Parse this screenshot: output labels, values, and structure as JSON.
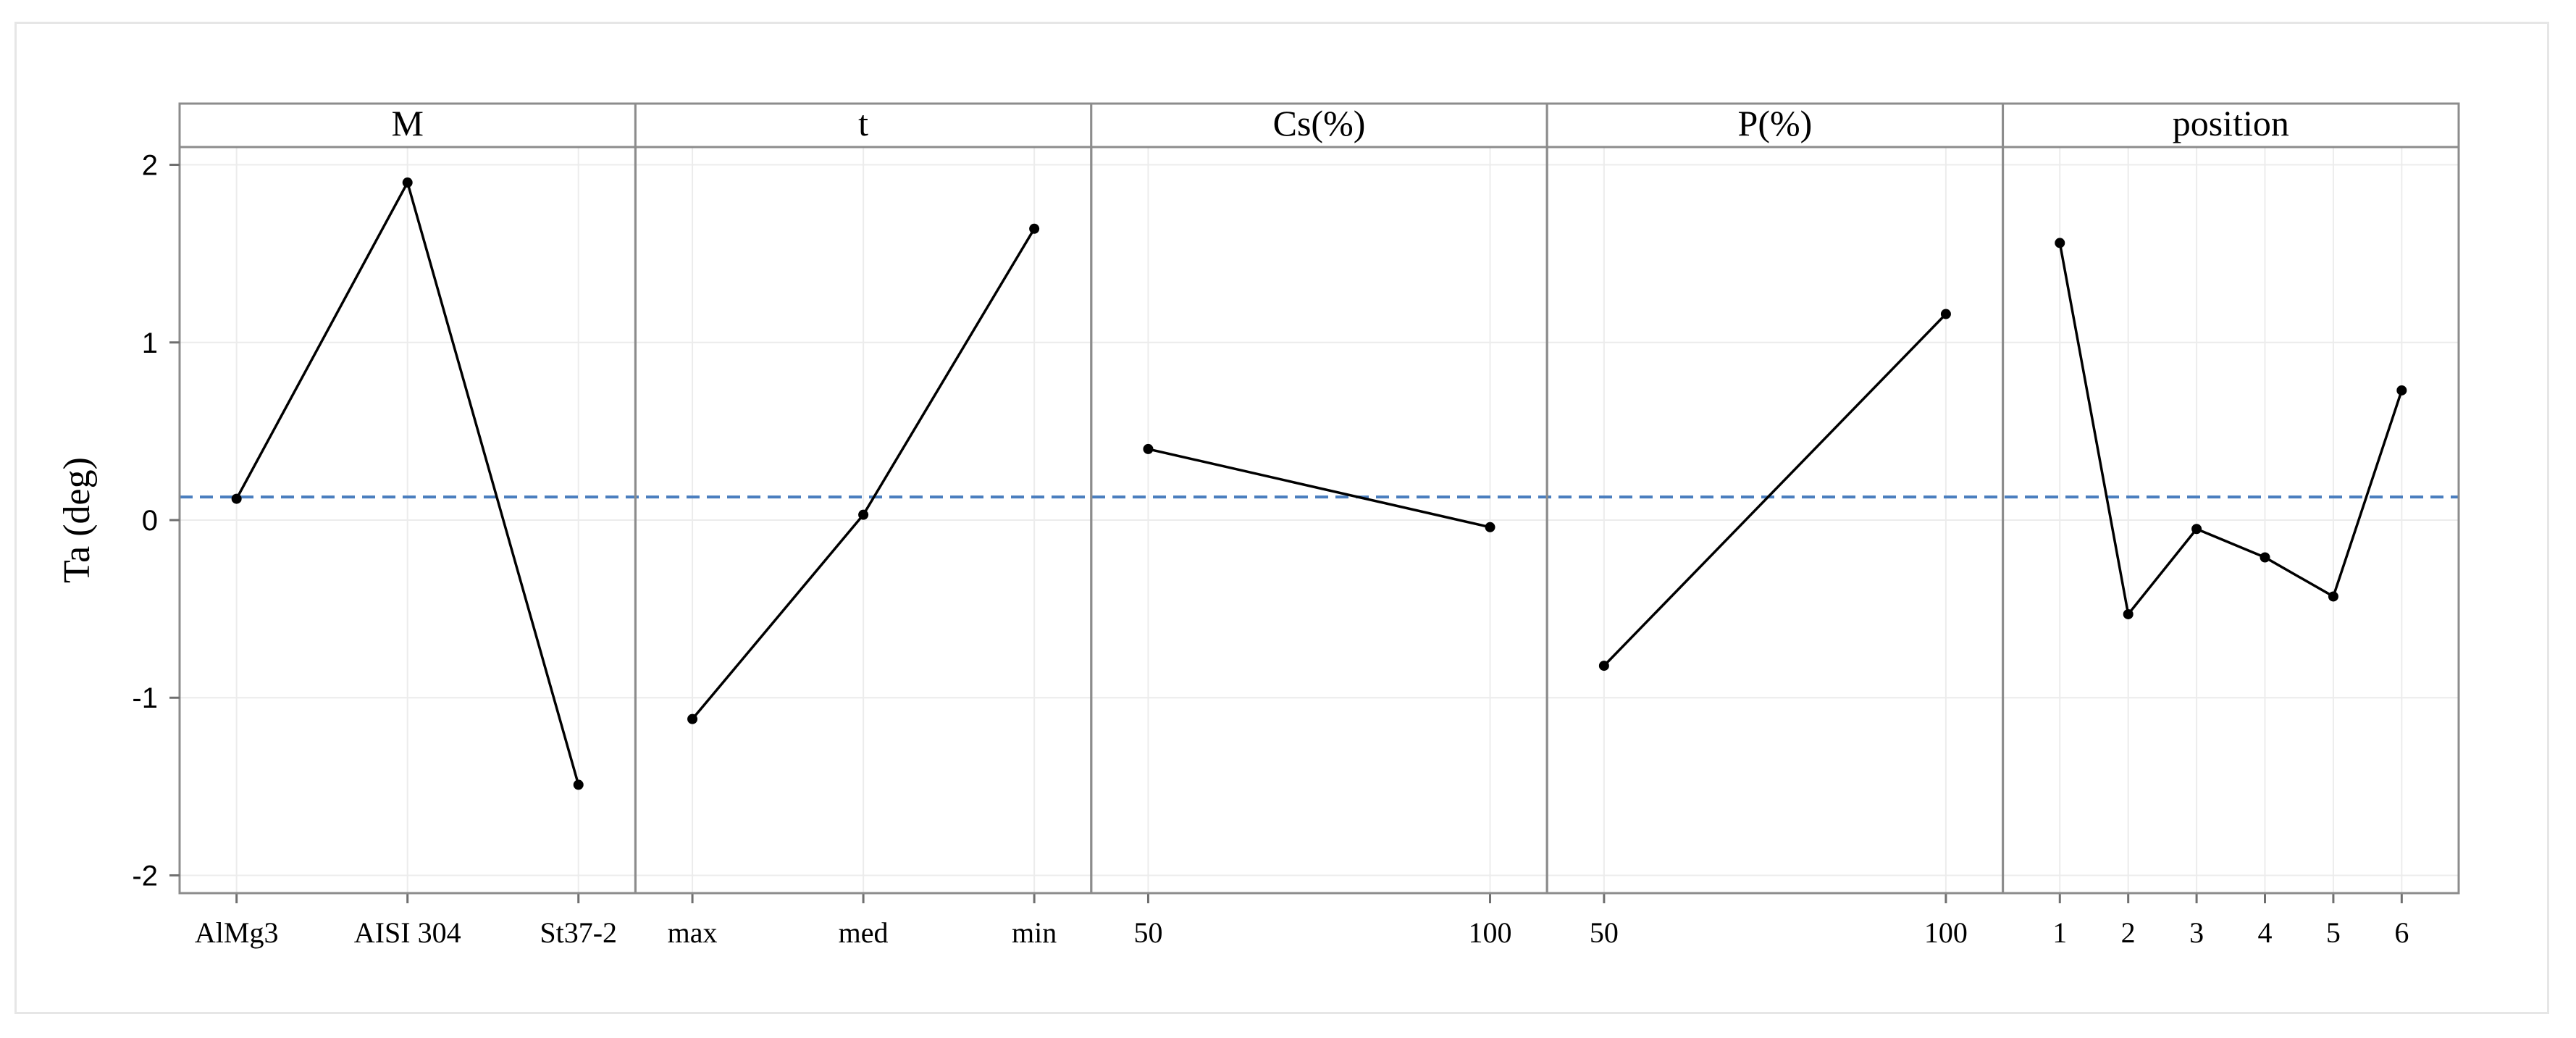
{
  "chart_data": {
    "type": "line",
    "ylabel": "Ta (deg)",
    "ylim": [
      -2.1,
      2.1
    ],
    "yticks": [
      2,
      1,
      0,
      -1,
      -2
    ],
    "ytick_labels": [
      "2",
      "1",
      "0",
      "-1",
      "-2"
    ],
    "reference_line": {
      "y": 0.13,
      "style": "dashed",
      "color": "#4a7ebf"
    },
    "line_color": "#000000",
    "grid": true,
    "panels": [
      {
        "title": "M",
        "categories": [
          "AlMg3",
          "AISI 304",
          "St37-2"
        ],
        "values": [
          0.12,
          1.9,
          -1.49
        ]
      },
      {
        "title": "t",
        "categories": [
          "max",
          "med",
          "min"
        ],
        "values": [
          -1.12,
          0.03,
          1.64
        ]
      },
      {
        "title": "Cs(%)",
        "categories": [
          "50",
          "100"
        ],
        "values": [
          0.4,
          -0.04
        ]
      },
      {
        "title": "P(%)",
        "categories": [
          "50",
          "100"
        ],
        "values": [
          -0.82,
          1.16
        ]
      },
      {
        "title": "position",
        "categories": [
          "1",
          "2",
          "3",
          "4",
          "5",
          "6"
        ],
        "values": [
          1.56,
          -0.53,
          -0.05,
          -0.21,
          -0.43,
          0.73
        ]
      }
    ]
  }
}
